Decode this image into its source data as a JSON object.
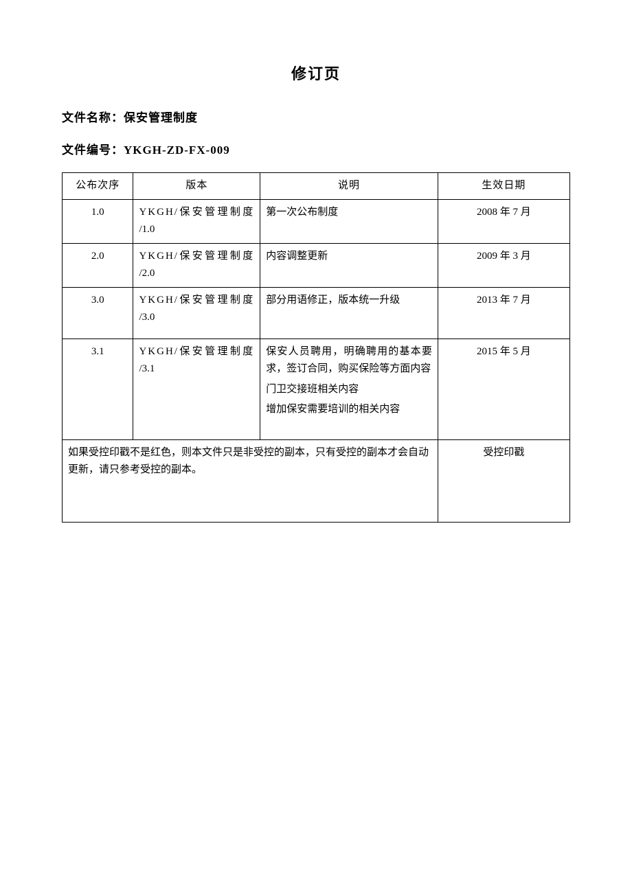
{
  "page": {
    "title": "修订页",
    "file_name_label": "文件名称：",
    "file_name_value": "保安管理制度",
    "file_code_label": "文件编号：",
    "file_code_value": "YKGH-ZD-FX-009"
  },
  "table": {
    "headers": {
      "order": "公布次序",
      "version": "版本",
      "description": "说明",
      "effective_date": "生效日期"
    },
    "rows": [
      {
        "order": "1.0",
        "version_line1": "YKGH/保安管理制度",
        "version_line2": "/1.0",
        "descriptions": [
          "第一次公布制度"
        ],
        "date": "2008 年 7 月"
      },
      {
        "order": "2.0",
        "version_line1": "YKGH/保安管理制度",
        "version_line2": "/2.0",
        "descriptions": [
          "内容调整更新"
        ],
        "date": "2009 年 3 月"
      },
      {
        "order": "3.0",
        "version_line1": "YKGH/保安管理制度",
        "version_line2": "/3.0",
        "descriptions": [
          "部分用语修正，版本统一升级"
        ],
        "date": "2013 年 7 月"
      },
      {
        "order": "3.1",
        "version_line1": "YKGH/保安管理制度",
        "version_line2": "/3.1",
        "descriptions": [
          "保安人员聘用，明确聘用的基本要求，签订合同，购买保险等方面内容",
          "门卫交接班相关内容",
          "增加保安需要培训的相关内容"
        ],
        "date": "2015 年 5 月"
      }
    ],
    "footer": {
      "note": "如果受控印戳不是红色，则本文件只是非受控的副本，只有受控的副本才会自动更新，请只参考受控的副本。",
      "stamp_label": "受控印戳"
    }
  },
  "styling": {
    "text_color": "#000000",
    "background_color": "#ffffff",
    "border_color": "#000000",
    "title_fontsize": 22,
    "meta_fontsize": 17,
    "table_fontsize": 15,
    "font_family": "SimSun"
  }
}
